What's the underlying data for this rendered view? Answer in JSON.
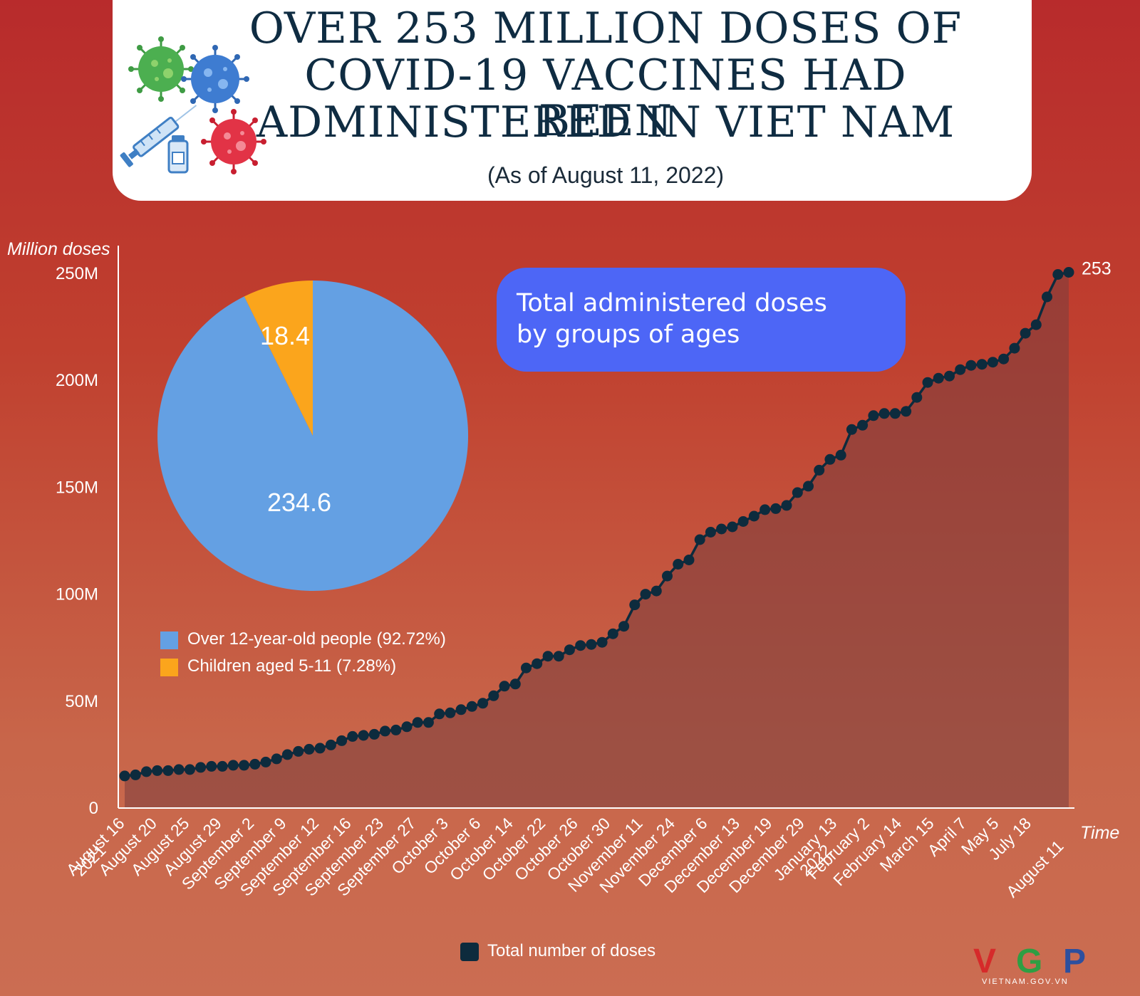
{
  "header": {
    "title_lines": [
      "OVER 253 MILLION DOSES OF",
      "COVID-19 VACCINES HAD BEEN",
      "ADMINISTERED IN VIET NAM"
    ],
    "subtitle": "(As of August 11, 2022)"
  },
  "bubble": {
    "text_line1": "Total administered doses",
    "text_line2": "by groups of ages"
  },
  "pie_legend": [
    {
      "label": "Over 12-year-old people (92.72%)",
      "color": "#64a0e3"
    },
    {
      "label": "Children aged 5-11 (7.28%)",
      "color": "#fba51c"
    }
  ],
  "bottom_legend": {
    "label": "Total number of doses",
    "color": "#0d2b3d"
  },
  "logo": {
    "text": "VGP",
    "subtext": "VIETNAM.GOV.VN"
  },
  "icons": [
    "virus-icon",
    "virus-icon",
    "virus-icon",
    "syringe-icon",
    "vial-icon"
  ],
  "chart_data": [
    {
      "type": "area",
      "title": "OVER 253 MILLION DOSES OF COVID-19 VACCINES HAD BEEN ADMINISTERED IN VIET NAM",
      "ylabel": "Million doses",
      "xlabel": "Time",
      "ylim": [
        0,
        250
      ],
      "yticks": [
        0,
        50,
        100,
        150,
        200,
        250
      ],
      "ytick_labels": [
        "0",
        "50M",
        "100M",
        "150M",
        "200M",
        "250M"
      ],
      "xtick_labels": [
        "August 16",
        "August 20",
        "August 25",
        "August 29",
        "September 2",
        "September 9",
        "September 12",
        "September 16",
        "September 23",
        "September 27",
        "October 3",
        "October 6",
        "October 14",
        "October 22",
        "October 26",
        "October 30",
        "November 11",
        "November 24",
        "December 6",
        "December 13",
        "December 19",
        "December 29",
        "January 13",
        "February 2",
        "February 14",
        "March 15",
        "April 7",
        "May 5",
        "July 18",
        "August 11"
      ],
      "year_labels": [
        "2021",
        "2022"
      ],
      "end_label": "253",
      "series": [
        {
          "name": "Total number of doses",
          "values": [
            15,
            15.5,
            17,
            17.5,
            17.5,
            18,
            18,
            19,
            19.5,
            19.5,
            20,
            20,
            20.5,
            21.5,
            23,
            25,
            26.5,
            27.5,
            28,
            29.5,
            31.5,
            33.5,
            34,
            34.5,
            36,
            36.5,
            38,
            40,
            40,
            44,
            44.5,
            46,
            47.5,
            49,
            52.5,
            57,
            58,
            65.5,
            67.5,
            71,
            71,
            74,
            76,
            76.5,
            77.5,
            81.5,
            85,
            95,
            100,
            101.5,
            108.5,
            114,
            116,
            125.5,
            129,
            130.5,
            131.5,
            134,
            136.5,
            139.5,
            140,
            141.5,
            147.5,
            150.5,
            158,
            163,
            165,
            177,
            179,
            183.5,
            184.5,
            184.5,
            185.5,
            192,
            199,
            201,
            202,
            205,
            207,
            207.5,
            208.5,
            210,
            215,
            222,
            226,
            239,
            249.5,
            250.5
          ]
        }
      ]
    },
    {
      "type": "pie",
      "title": "Total administered doses by groups of ages",
      "labels": [
        "Over 12-year-old people (92.72%)",
        "Children aged 5-11 (7.28%)"
      ],
      "values": [
        234.6,
        18.4
      ],
      "value_labels": [
        "234.6",
        "18.4"
      ],
      "colors": [
        "#64a0e3",
        "#fba51c"
      ]
    }
  ]
}
